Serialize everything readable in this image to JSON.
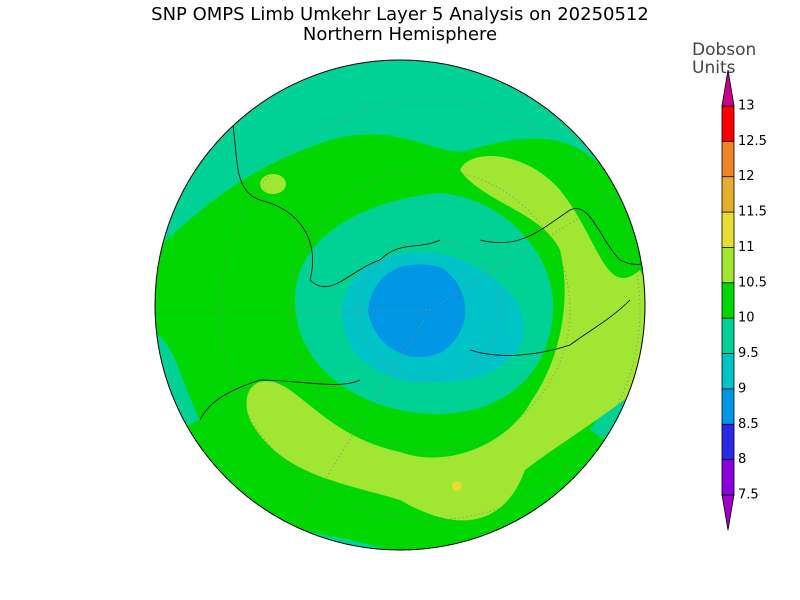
{
  "header": {
    "title": "SNP OMPS Limb Umkehr Layer 5 Analysis on 20250512",
    "subtitle": "Northern Hemisphere"
  },
  "colorbar": {
    "label": [
      "Dobson",
      "Units"
    ],
    "ticks": [
      7.5,
      8,
      8.5,
      9,
      9.5,
      10,
      10.5,
      11,
      11.5,
      12,
      12.5,
      13
    ],
    "colors": [
      "#8c00dc",
      "#2828e6",
      "#0096e6",
      "#00c3c8",
      "#00d296",
      "#00d700",
      "#a0e632",
      "#e6dc32",
      "#e6af2d",
      "#f08228",
      "#fa0000"
    ],
    "under_color": "#a000c8",
    "over_color": "#c8008c"
  }
}
